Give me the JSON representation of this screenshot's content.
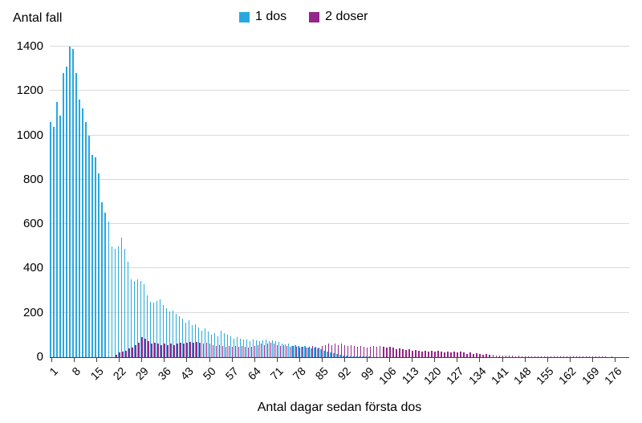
{
  "chart_data": {
    "type": "bar",
    "title": "Antal fall",
    "xlabel": "Antal dagar sedan första dos",
    "ylabel": "Antal fall",
    "ylim": [
      0,
      1400
    ],
    "ytick_step": 200,
    "grid": true,
    "legend_position": "top-center",
    "x_start": 1,
    "xticks": [
      1,
      8,
      15,
      22,
      29,
      36,
      43,
      50,
      57,
      64,
      71,
      78,
      85,
      92,
      99,
      106,
      113,
      120,
      127,
      134,
      141,
      148,
      155,
      162,
      169,
      176
    ],
    "series": [
      {
        "name": "1 dos",
        "color": "#29a8e0",
        "values": [
          1060,
          1040,
          1150,
          1090,
          1280,
          1310,
          1400,
          1390,
          1280,
          1160,
          1120,
          1060,
          1000,
          910,
          900,
          830,
          700,
          650,
          610,
          500,
          490,
          500,
          540,
          490,
          430,
          350,
          345,
          350,
          345,
          330,
          280,
          250,
          245,
          255,
          260,
          235,
          220,
          205,
          210,
          195,
          185,
          175,
          155,
          165,
          145,
          150,
          135,
          120,
          130,
          115,
          100,
          110,
          95,
          120,
          110,
          100,
          95,
          85,
          90,
          85,
          80,
          78,
          72,
          80,
          76,
          72,
          76,
          80,
          72,
          76,
          72,
          68,
          62,
          58,
          62,
          52,
          56,
          50,
          46,
          50,
          45,
          40,
          44,
          40,
          36,
          30,
          26,
          22,
          18,
          14,
          10,
          8,
          6,
          5,
          4,
          3,
          3,
          2,
          2,
          2,
          0,
          0,
          0,
          0,
          0,
          0,
          0,
          0,
          0,
          0,
          0,
          0,
          0,
          0,
          0,
          0,
          0,
          0,
          0,
          0,
          0,
          0,
          0,
          0,
          0,
          0,
          0,
          0,
          0,
          0,
          0,
          0,
          0,
          0,
          0,
          0,
          0,
          0,
          0,
          0,
          0,
          0,
          0,
          0,
          0,
          0,
          0,
          0,
          0,
          0,
          0,
          0,
          0,
          0,
          0,
          0,
          0,
          0,
          0,
          0,
          0,
          0,
          0,
          0,
          0,
          0,
          0,
          0,
          0,
          0,
          0,
          0,
          0,
          0,
          0,
          0,
          0,
          0,
          0,
          0
        ]
      },
      {
        "name": "2 doser",
        "color": "#95258a",
        "values": [
          0,
          0,
          0,
          0,
          0,
          0,
          0,
          0,
          0,
          0,
          0,
          0,
          0,
          0,
          0,
          0,
          0,
          0,
          0,
          0,
          10,
          20,
          25,
          30,
          40,
          45,
          55,
          65,
          90,
          85,
          72,
          60,
          66,
          60,
          56,
          60,
          55,
          60,
          56,
          62,
          66,
          60,
          66,
          70,
          66,
          70,
          66,
          60,
          66,
          62,
          56,
          52,
          56,
          50,
          46,
          50,
          46,
          50,
          46,
          50,
          46,
          42,
          46,
          52,
          56,
          60,
          56,
          62,
          66,
          60,
          56,
          52,
          56,
          50,
          46,
          50,
          46,
          42,
          46,
          42,
          46,
          52,
          46,
          42,
          52,
          56,
          60,
          56,
          60,
          56,
          60,
          56,
          50,
          56,
          50,
          46,
          52,
          46,
          42,
          46,
          50,
          46,
          50,
          46,
          42,
          46,
          42,
          36,
          40,
          36,
          32,
          36,
          30,
          34,
          30,
          26,
          30,
          26,
          30,
          26,
          30,
          26,
          22,
          26,
          22,
          24,
          20,
          24,
          20,
          16,
          20,
          16,
          18,
          15,
          12,
          14,
          10,
          10,
          9,
          8,
          8,
          6,
          8,
          6,
          5,
          6,
          5,
          5,
          4,
          5,
          4,
          4,
          5,
          4,
          3,
          4,
          3,
          4,
          3,
          3,
          4,
          3,
          2,
          3,
          2,
          3,
          2,
          2,
          3,
          2,
          2,
          2,
          2,
          1,
          2,
          1,
          1,
          1,
          1,
          1
        ]
      }
    ]
  }
}
